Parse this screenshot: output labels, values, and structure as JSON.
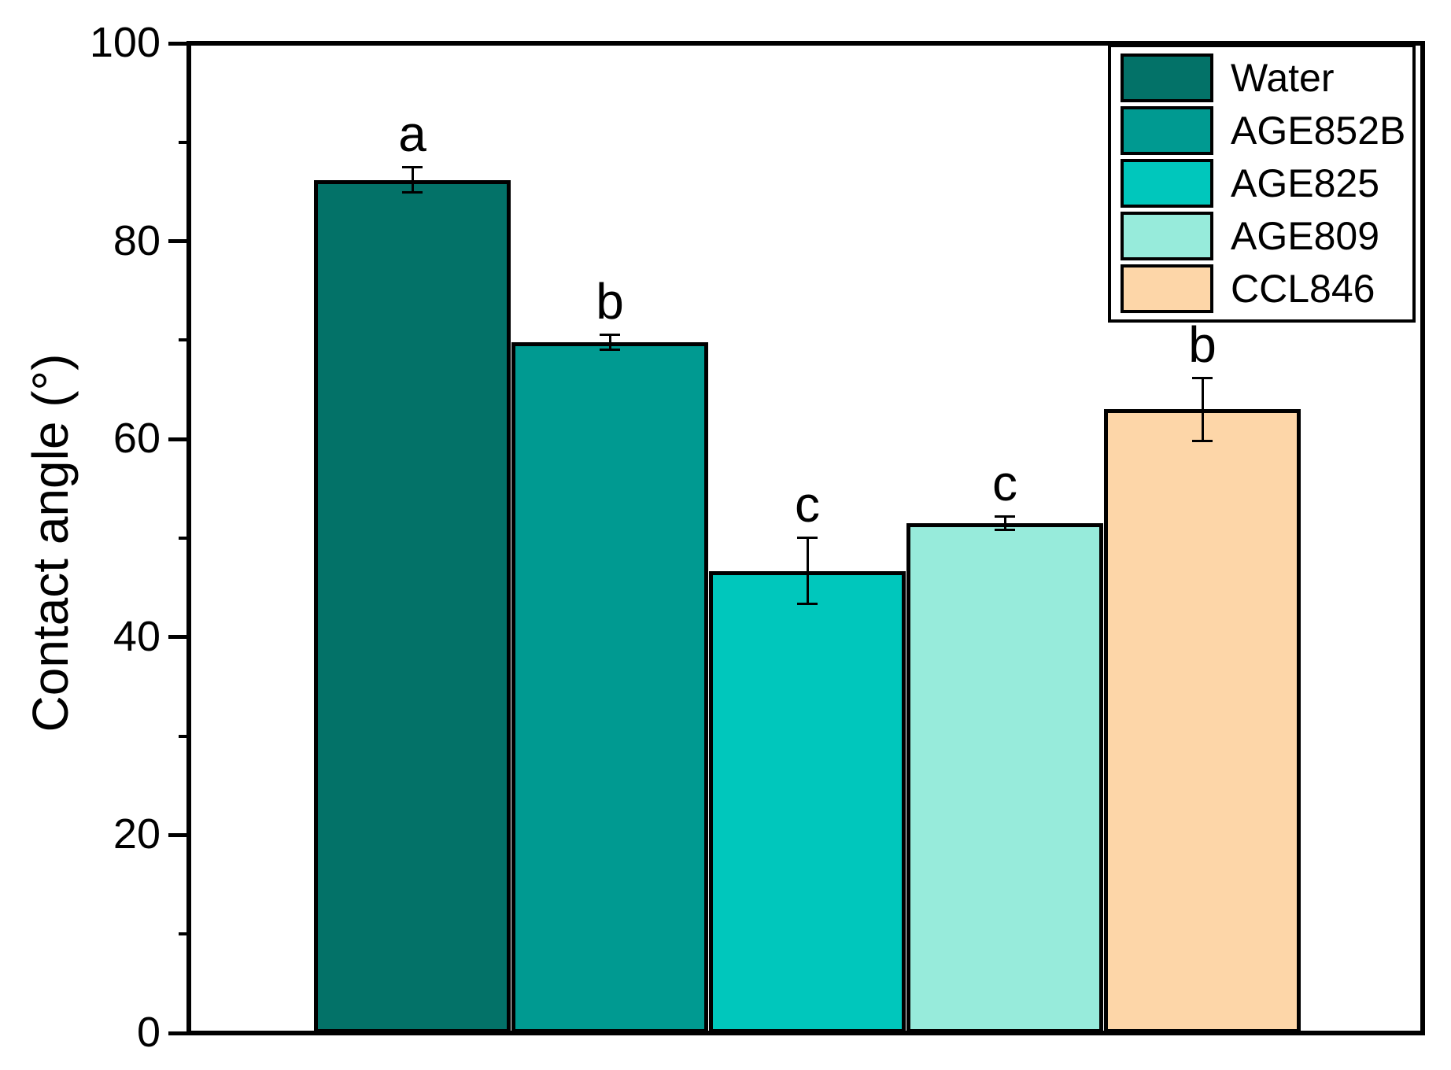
{
  "chart_data": {
    "type": "bar",
    "title": "",
    "xlabel": "",
    "ylabel": "Contact angle (°)",
    "ylim": [
      0,
      100
    ],
    "yticks_major": [
      0,
      20,
      40,
      60,
      80,
      100
    ],
    "yticks_minor": [
      10,
      30,
      50,
      70,
      90
    ],
    "grid": false,
    "x_tick_labels_visible": false,
    "categories": [
      "Water",
      "AGE852B",
      "AGE825",
      "AGE809",
      "CCL846"
    ],
    "values": [
      86.2,
      69.8,
      46.7,
      51.5,
      63.0
    ],
    "error_bars": [
      1.3,
      0.8,
      3.4,
      0.7,
      3.2
    ],
    "significance_letters": [
      "a",
      "b",
      "c",
      "c",
      "b"
    ],
    "bar_colors": [
      "#037268",
      "#009A91",
      "#00C7BC",
      "#97EBDB",
      "#FDD6A8"
    ],
    "bar_border_color": "#000000",
    "legend_position": "top-right",
    "legend": [
      {
        "label": "Water",
        "color": "#037268"
      },
      {
        "label": "AGE852B",
        "color": "#009A91"
      },
      {
        "label": "AGE825",
        "color": "#00C7BC"
      },
      {
        "label": "AGE809",
        "color": "#97EBDB"
      },
      {
        "label": "CCL846",
        "color": "#FDD6A8"
      }
    ]
  },
  "colors": {
    "background": "#FFFFFF",
    "axis": "#000000",
    "text": "#000000"
  }
}
